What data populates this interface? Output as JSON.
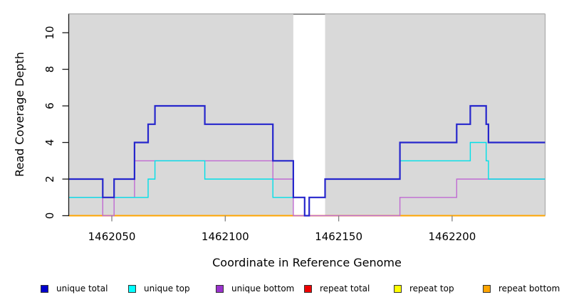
{
  "chart_data": {
    "type": "line",
    "subtype": "step-coverage",
    "title": "",
    "xlabel": "Coordinate in Reference Genome",
    "ylabel": "Read Coverage Depth",
    "xlim": [
      1462031,
      1462241
    ],
    "ylim": [
      0,
      11.03
    ],
    "xticks": [
      1462050,
      1462100,
      1462150,
      1462200
    ],
    "yticks": [
      0,
      2,
      4,
      6,
      8,
      10
    ],
    "grid": "off",
    "legend_position": "bottom",
    "panel": {
      "covered_color": "#d9d9d9",
      "gap_color": "#ffffff",
      "covered_regions": [
        [
          1462031,
          1462130
        ],
        [
          1462144,
          1462241
        ]
      ],
      "gap_regions": [
        [
          1462130,
          1462144
        ]
      ]
    },
    "series": [
      {
        "name": "repeat total",
        "color": "#e00000",
        "line_width": 1.4,
        "points": [
          [
            1462031,
            0
          ],
          [
            1462241,
            0
          ]
        ]
      },
      {
        "name": "repeat top",
        "color": "#ffff00",
        "line_width": 1.4,
        "points": [
          [
            1462031,
            0
          ],
          [
            1462241,
            0
          ]
        ]
      },
      {
        "name": "repeat bottom",
        "color": "#ffa500",
        "line_width": 2,
        "points": [
          [
            1462031,
            0
          ],
          [
            1462241,
            0
          ]
        ]
      },
      {
        "name": "unique bottom",
        "color": "#c06ad2",
        "line_width": 1.4,
        "points": [
          [
            1462031,
            1
          ],
          [
            1462046,
            0
          ],
          [
            1462051,
            1
          ],
          [
            1462060,
            3
          ],
          [
            1462121,
            2
          ],
          [
            1462130,
            0
          ],
          [
            1462177,
            1
          ],
          [
            1462202,
            2
          ],
          [
            1462241,
            2
          ]
        ]
      },
      {
        "name": "unique top",
        "color": "#00e0e8",
        "line_width": 1.4,
        "points": [
          [
            1462031,
            1
          ],
          [
            1462066,
            2
          ],
          [
            1462069,
            3
          ],
          [
            1462091,
            2
          ],
          [
            1462121,
            1
          ],
          [
            1462135,
            0
          ],
          [
            1462137,
            1
          ],
          [
            1462144,
            2
          ],
          [
            1462177,
            3
          ],
          [
            1462208,
            4
          ],
          [
            1462215,
            3
          ],
          [
            1462216,
            2
          ],
          [
            1462241,
            2
          ]
        ]
      },
      {
        "name": "unique total",
        "color": "#2626cc",
        "line_width": 2.2,
        "points": [
          [
            1462031,
            2
          ],
          [
            1462046,
            1
          ],
          [
            1462051,
            2
          ],
          [
            1462060,
            4
          ],
          [
            1462066,
            5
          ],
          [
            1462069,
            6
          ],
          [
            1462091,
            5
          ],
          [
            1462121,
            3
          ],
          [
            1462130,
            1
          ],
          [
            1462135,
            0
          ],
          [
            1462137,
            1
          ],
          [
            1462144,
            2
          ],
          [
            1462177,
            4
          ],
          [
            1462202,
            5
          ],
          [
            1462208,
            6
          ],
          [
            1462215,
            5
          ],
          [
            1462216,
            4
          ],
          [
            1462241,
            4
          ]
        ]
      }
    ],
    "legend": [
      {
        "label": "unique total",
        "color": "#0000cd"
      },
      {
        "label": "unique top",
        "color": "#00ffff"
      },
      {
        "label": "unique bottom",
        "color": "#9a32cd"
      },
      {
        "label": "repeat total",
        "color": "#ee0000"
      },
      {
        "label": "repeat top",
        "color": "#ffff00"
      },
      {
        "label": "repeat bottom",
        "color": "#ffa500"
      }
    ],
    "colors": {
      "panel_gray": "#d9d9d9",
      "border_gray": "#a9a9a9",
      "gap_border_gray": "#8a8a8a",
      "axis_black": "#1a1a1a",
      "x_tick_gray": "#808080"
    }
  }
}
